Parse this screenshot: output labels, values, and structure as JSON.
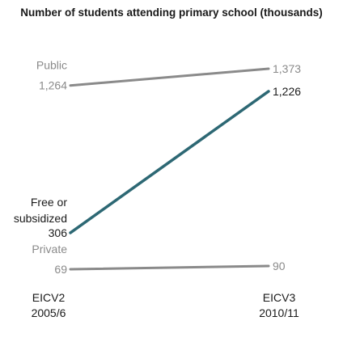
{
  "chart_data": {
    "type": "line",
    "title": "Number of students attending primary school (thousands)",
    "categories": [
      {
        "line1": "EICV2",
        "line2": "2005/6"
      },
      {
        "line1": "EICV3",
        "line2": "2010/11"
      }
    ],
    "ylim": [
      0,
      1400
    ],
    "series": [
      {
        "name": "Public",
        "values": [
          1264,
          1373
        ],
        "value_labels": [
          "1,264",
          "1,373"
        ],
        "color": "#8a8a8a",
        "emphasis": false
      },
      {
        "name": "Free or subsidized",
        "values": [
          306,
          1226
        ],
        "value_labels": [
          "306",
          "1,226"
        ],
        "color": "#2d6874",
        "emphasis": true
      },
      {
        "name": "Private",
        "values": [
          69,
          90
        ],
        "value_labels": [
          "69",
          "90"
        ],
        "color": "#8a8a8a",
        "emphasis": false
      }
    ],
    "grid": false,
    "legend": "none"
  }
}
